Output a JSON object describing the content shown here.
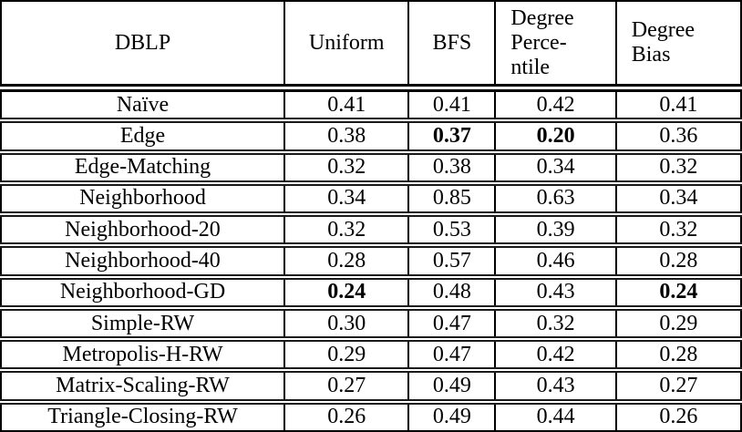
{
  "table": {
    "dataset_label": "DBLP",
    "columns": [
      {
        "label": "Uniform"
      },
      {
        "label": "BFS"
      },
      {
        "lines": [
          "Degree",
          "Perce-",
          "ntile"
        ]
      },
      {
        "lines": [
          "Degree",
          "Bias"
        ]
      }
    ],
    "rows": [
      {
        "label": "Naïve",
        "values": [
          "0.41",
          "0.41",
          "0.42",
          "0.41"
        ],
        "bold": [
          false,
          false,
          false,
          false
        ]
      },
      {
        "label": "Edge",
        "values": [
          "0.38",
          "0.37",
          "0.20",
          "0.36"
        ],
        "bold": [
          false,
          true,
          true,
          false
        ]
      },
      {
        "label": "Edge-Matching",
        "values": [
          "0.32",
          "0.38",
          "0.34",
          "0.32"
        ],
        "bold": [
          false,
          false,
          false,
          false
        ]
      },
      {
        "label": "Neighborhood",
        "values": [
          "0.34",
          "0.85",
          "0.63",
          "0.34"
        ],
        "bold": [
          false,
          false,
          false,
          false
        ]
      },
      {
        "label": "Neighborhood-20",
        "values": [
          "0.32",
          "0.53",
          "0.39",
          "0.32"
        ],
        "bold": [
          false,
          false,
          false,
          false
        ]
      },
      {
        "label": "Neighborhood-40",
        "values": [
          "0.28",
          "0.57",
          "0.46",
          "0.28"
        ],
        "bold": [
          false,
          false,
          false,
          false
        ]
      },
      {
        "label": "Neighborhood-GD",
        "values": [
          "0.24",
          "0.48",
          "0.43",
          "0.24"
        ],
        "bold": [
          true,
          false,
          false,
          true
        ]
      },
      {
        "label": "Simple-RW",
        "values": [
          "0.30",
          "0.47",
          "0.32",
          "0.29"
        ],
        "bold": [
          false,
          false,
          false,
          false
        ]
      },
      {
        "label": "Metropolis-H-RW",
        "values": [
          "0.29",
          "0.47",
          "0.42",
          "0.28"
        ],
        "bold": [
          false,
          false,
          false,
          false
        ]
      },
      {
        "label": "Matrix-Scaling-RW",
        "values": [
          "0.27",
          "0.49",
          "0.43",
          "0.27"
        ],
        "bold": [
          false,
          false,
          false,
          false
        ]
      },
      {
        "label": "Triangle-Closing-RW",
        "values": [
          "0.26",
          "0.49",
          "0.44",
          "0.26"
        ],
        "bold": [
          false,
          false,
          false,
          false
        ]
      }
    ]
  },
  "colors": {
    "border": "#000000",
    "text": "#000000",
    "background": "#ffffff"
  }
}
